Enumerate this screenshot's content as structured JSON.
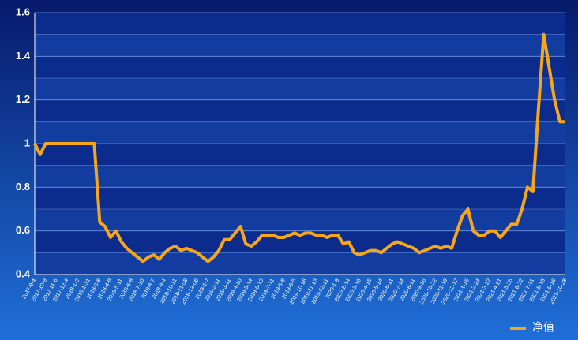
{
  "chart_data": {
    "type": "line",
    "categories": [
      "2017-9-4",
      null,
      "2017-10-9",
      null,
      "2017-11-6",
      null,
      "2017-12-4",
      null,
      "2018-1-3",
      null,
      "2018-1-31",
      null,
      "2018-3-8",
      null,
      "2018-4-9",
      null,
      "2018-5-11",
      null,
      "2018-6-8",
      null,
      "2018-7-10",
      null,
      "2018-8-7",
      null,
      "2018-9-4",
      null,
      "2018-10-11",
      null,
      "2018-11-08",
      null,
      "2018-12-06",
      null,
      "2019-1-7",
      null,
      "2019-2-11",
      null,
      "2019-3-11",
      null,
      "2019-4-10",
      null,
      "2019-5-14",
      null,
      "2019-6-13",
      null,
      "2019-7-11",
      null,
      "2019-8-8",
      null,
      "2019-9-5",
      null,
      "2019-10-16",
      null,
      "2019-11-13",
      null,
      "2019-12-11",
      null,
      "2020-1-8",
      null,
      "2020-2-14",
      null,
      "2020-3-16",
      null,
      "2020-4-15",
      null,
      "2020-5-14",
      null,
      "2020-6-11",
      null,
      "2020-7-14",
      null,
      "2020-8-11",
      null,
      "2020-9-16",
      null,
      "2020-10-22",
      null,
      "2020-11-19",
      null,
      "2020-12-17",
      null,
      "2021-1-15",
      null,
      "2021-2-24",
      null,
      "2021-3-22",
      null,
      "2021-4-21",
      null,
      "2021-5-25",
      null,
      "2021-6-22",
      null,
      "2021-7-21",
      null,
      "2021-8-18",
      null,
      "2021-9-16",
      null,
      "2021-10-28"
    ],
    "series": [
      {
        "name": "净值",
        "color": "#f7a61c",
        "values": [
          1.0,
          0.95,
          1.0,
          1.0,
          1.0,
          1.0,
          1.0,
          1.0,
          1.0,
          1.0,
          1.0,
          1.0,
          0.64,
          0.62,
          0.57,
          0.6,
          0.55,
          0.52,
          0.5,
          0.48,
          0.46,
          0.48,
          0.49,
          0.47,
          0.5,
          0.52,
          0.53,
          0.51,
          0.52,
          0.51,
          0.5,
          0.48,
          0.46,
          0.48,
          0.51,
          0.56,
          0.56,
          0.59,
          0.62,
          0.54,
          0.53,
          0.55,
          0.58,
          0.58,
          0.58,
          0.57,
          0.57,
          0.58,
          0.59,
          0.58,
          0.59,
          0.59,
          0.58,
          0.58,
          0.57,
          0.58,
          0.58,
          0.54,
          0.55,
          0.5,
          0.49,
          0.5,
          0.51,
          0.51,
          0.5,
          0.52,
          0.54,
          0.55,
          0.54,
          0.53,
          0.52,
          0.5,
          0.51,
          0.52,
          0.53,
          0.52,
          0.53,
          0.52,
          0.6,
          0.67,
          0.7,
          0.6,
          0.58,
          0.58,
          0.6,
          0.6,
          0.57,
          0.6,
          0.63,
          0.63,
          0.7,
          0.8,
          0.78,
          1.15,
          1.5,
          1.35,
          1.2,
          1.1,
          1.1
        ]
      }
    ],
    "ylim": [
      0.4,
      1.6
    ],
    "yticks": [
      0.4,
      0.6,
      0.8,
      1,
      1.2,
      1.4,
      1.6
    ],
    "grid": true,
    "legend": "bottom-right"
  }
}
